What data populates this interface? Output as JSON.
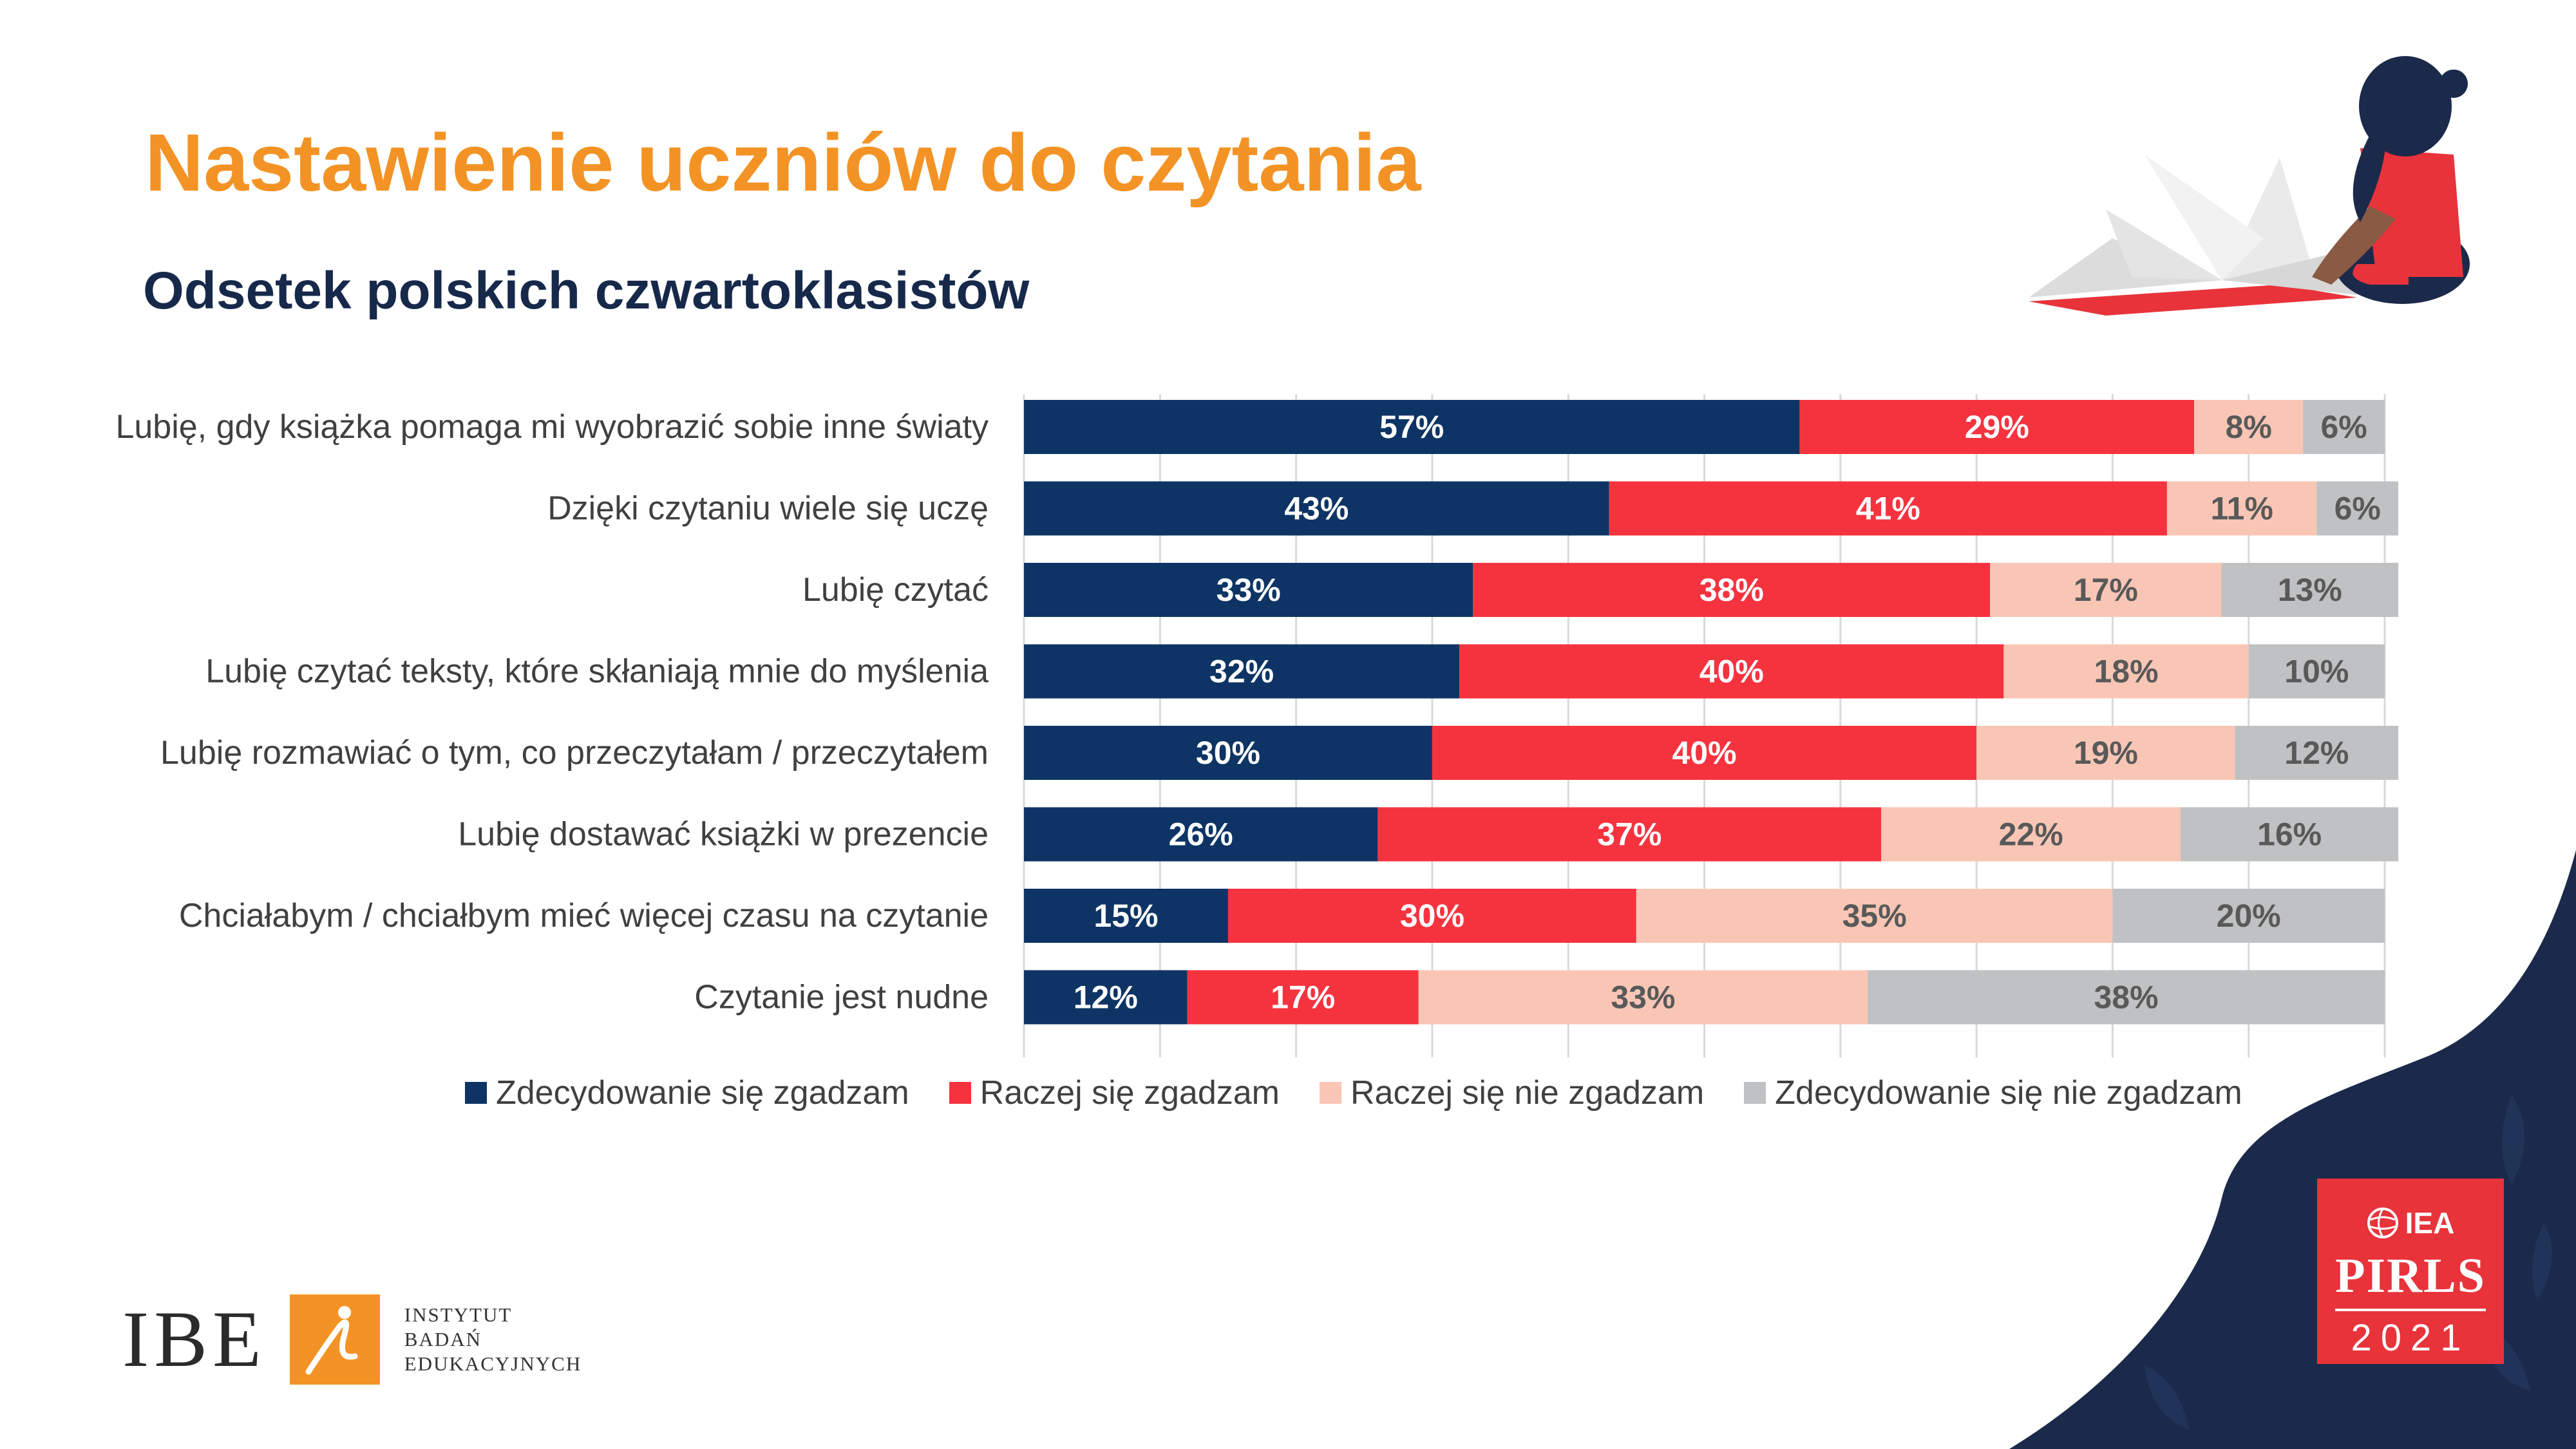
{
  "title": "Nastawienie uczniów do czytania",
  "subtitle": "Odsetek polskich czwartoklasistów",
  "chart_data": {
    "type": "bar",
    "orientation": "horizontal",
    "stacked": true,
    "categories": [
      "Lubię, gdy książka pomaga mi wyobrazić sobie inne światy",
      "Dzięki czytaniu wiele się uczę",
      "Lubię czytać",
      "Lubię czytać teksty, które skłaniają mnie do myślenia",
      "Lubię rozmawiać o tym, co przeczytałam / przeczytałem",
      "Lubię dostawać książki w prezencie",
      "Chciałabym / chciałbym mieć więcej czasu na czytanie",
      "Czytanie jest nudne"
    ],
    "series": [
      {
        "name": "Zdecydowanie się zgadzam",
        "color": "#0d3464",
        "label_color": "#ffffff",
        "values": [
          57,
          43,
          33,
          32,
          30,
          26,
          15,
          12
        ]
      },
      {
        "name": "Raczej się zgadzam",
        "color": "#f5333f",
        "label_color": "#ffffff",
        "values": [
          29,
          41,
          38,
          40,
          40,
          37,
          30,
          17
        ]
      },
      {
        "name": "Raczej się nie zgadzam",
        "color": "#f9c6b6",
        "label_color": "#595959",
        "values": [
          8,
          11,
          17,
          18,
          19,
          22,
          35,
          33
        ]
      },
      {
        "name": "Zdecydowanie się nie zgadzam",
        "color": "#bfc1c2",
        "label_color": "#595959",
        "values": [
          6,
          6,
          13,
          10,
          12,
          16,
          20,
          38
        ]
      }
    ],
    "value_suffix": "%",
    "xlim": [
      0,
      100
    ],
    "grid": true,
    "legend_position": "bottom"
  },
  "logo_ibe": {
    "letters": "IBE",
    "name_lines": [
      "INSTYTUT",
      "BADAŃ",
      "EDUKACYJNYCH"
    ]
  },
  "logo_pirls": {
    "org": "IEA",
    "name": "PIRLS",
    "year": "2021"
  },
  "colors": {
    "title": "#f39325",
    "subtitle": "#17294a",
    "navy": "#1b2a4a",
    "pirls_red": "#e8333b"
  }
}
